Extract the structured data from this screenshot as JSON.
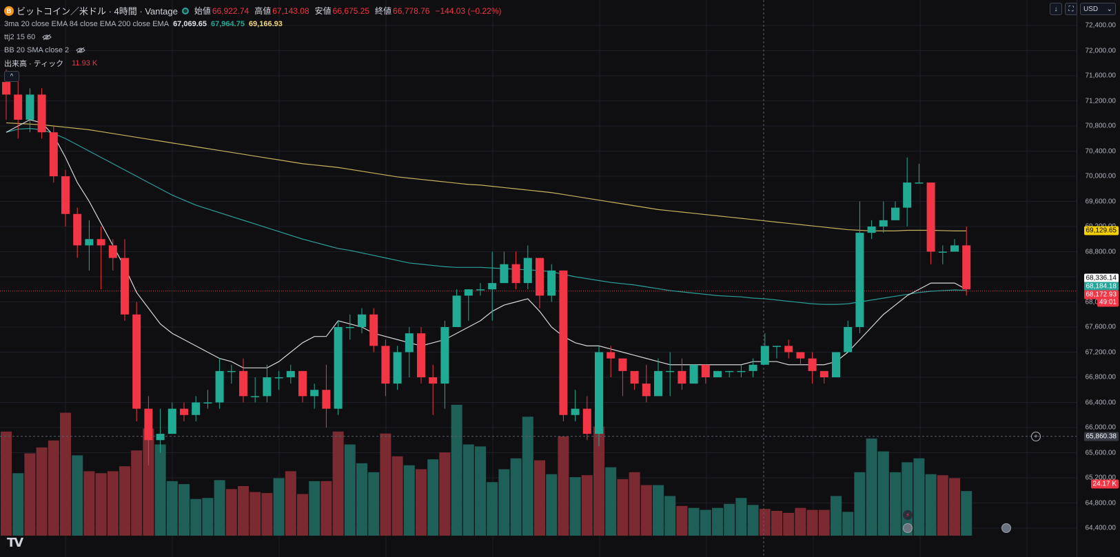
{
  "header": {
    "coin_icon_letter": "B",
    "symbol_title": "ビットコイン／米ドル · 4時間 · Vantage",
    "open_label": "始値",
    "open_value": "66,922.74",
    "high_label": "高値",
    "high_value": "67,143.08",
    "low_label": "安値",
    "low_value": "66,675.25",
    "close_label": "終値",
    "close_value": "66,778.76",
    "change_value": "−144.03 (−0.22%)"
  },
  "indicators": {
    "ma_name": "3ma 20 close EMA 84 close EMA 200 close EMA",
    "ma_value_1": "67,069.65",
    "ma_value_2": "67,964.75",
    "ma_value_3": "69,166.93",
    "ttj_name": "ttj2 15 60",
    "bb_name": "BB 20 SMA close 2",
    "volume_name": "出来高 · ティック",
    "volume_value": "11.93 K"
  },
  "controls": {
    "download_icon": "↓",
    "fullscreen_icon": "⛶",
    "currency": "USD",
    "collapse_icon": "^"
  },
  "price_axis": {
    "labels": [
      "72,400.00",
      "72,000.00",
      "71,600.00",
      "71,200.00",
      "70,800.00",
      "70,400.00",
      "70,000.00",
      "69,600.00",
      "69,200.00",
      "68,800.00",
      "68,400.00",
      "68,000.00",
      "67,600.00",
      "67,200.00",
      "66,800.00",
      "66,400.00",
      "66,000.00",
      "65,600.00",
      "65,200.00",
      "64,800.00",
      "64,400.00"
    ],
    "tags": {
      "ema200": "69,129.65",
      "last_white": "68,336.14",
      "ema84": "68,184.18",
      "last_price": "68,172.93",
      "countdown": "49:01",
      "crosshair_price": "65,860.38",
      "volume_tag": "24.17 K"
    }
  },
  "colors": {
    "up": "#22ab94",
    "down": "#f23645",
    "up_vol": "#1e5f58",
    "down_vol": "#7a2a30",
    "ema20": "#d8d8d8",
    "ema84": "#2aa198",
    "ema200": "#c9b45c",
    "bg": "#0f0f12",
    "grid": "#1c1f27"
  },
  "chart_data": {
    "type": "candlestick",
    "ylim": [
      64400,
      72600
    ],
    "candles": [
      [
        71500,
        71300,
        71700,
        70900
      ],
      [
        71300,
        70900,
        71600,
        70600
      ],
      [
        70900,
        71300,
        71400,
        70700
      ],
      [
        71300,
        70700,
        71400,
        70600
      ],
      [
        70700,
        70000,
        70800,
        69900
      ],
      [
        70000,
        69400,
        70100,
        69200
      ],
      [
        69400,
        68900,
        69500,
        68700
      ],
      [
        68900,
        69000,
        69300,
        68500
      ],
      [
        69000,
        68900,
        69200,
        68200
      ],
      [
        68900,
        68700,
        69000,
        68500
      ],
      [
        68700,
        67800,
        69000,
        67700
      ],
      [
        67800,
        66300,
        68000,
        66100
      ],
      [
        66300,
        65800,
        66500,
        65400
      ],
      [
        65800,
        65900,
        66300,
        65600
      ],
      [
        65900,
        66300,
        66400,
        65900
      ],
      [
        66300,
        66200,
        66400,
        66100
      ],
      [
        66200,
        66400,
        66500,
        66100
      ],
      [
        66400,
        66400,
        66600,
        66300
      ],
      [
        66400,
        66900,
        67100,
        66300
      ],
      [
        66900,
        66900,
        67000,
        66700
      ],
      [
        66900,
        66500,
        67100,
        66400
      ],
      [
        66500,
        66500,
        66800,
        66400
      ],
      [
        66500,
        66800,
        67000,
        66400
      ],
      [
        66800,
        66800,
        66900,
        66600
      ],
      [
        66800,
        66900,
        67000,
        66700
      ],
      [
        66900,
        66500,
        66900,
        66400
      ],
      [
        66500,
        66600,
        66700,
        66300
      ],
      [
        66600,
        66300,
        67000,
        66000
      ],
      [
        66300,
        67600,
        67700,
        66200
      ],
      [
        67600,
        67600,
        67800,
        67400
      ],
      [
        67600,
        67800,
        67900,
        67500
      ],
      [
        67800,
        67300,
        67900,
        67200
      ],
      [
        67300,
        66700,
        67400,
        66500
      ],
      [
        66700,
        67200,
        67300,
        66600
      ],
      [
        67200,
        67500,
        67600,
        66800
      ],
      [
        67500,
        66800,
        67600,
        66700
      ],
      [
        66800,
        66700,
        67000,
        66200
      ],
      [
        66700,
        67600,
        67700,
        66300
      ],
      [
        67600,
        68100,
        68200,
        67600
      ],
      [
        68100,
        68200,
        68200,
        67700
      ],
      [
        68200,
        68200,
        68300,
        68100
      ],
      [
        68200,
        68300,
        68800,
        67700
      ],
      [
        68300,
        68600,
        68800,
        68300
      ],
      [
        68600,
        68300,
        68800,
        68200
      ],
      [
        68300,
        68700,
        68900,
        68200
      ],
      [
        68700,
        68100,
        68700,
        67900
      ],
      [
        68100,
        68500,
        68600,
        68000
      ],
      [
        68500,
        66200,
        68500,
        66100
      ],
      [
        66200,
        66300,
        66600,
        66100
      ],
      [
        66300,
        65900,
        66500,
        65800
      ],
      [
        65900,
        67200,
        67300,
        65700
      ],
      [
        67200,
        67100,
        67300,
        66800
      ],
      [
        67100,
        66900,
        67100,
        66500
      ],
      [
        66900,
        66700,
        66800,
        66600
      ],
      [
        66700,
        66500,
        67000,
        66400
      ],
      [
        66500,
        66900,
        67100,
        66500
      ],
      [
        66900,
        66900,
        67200,
        66500
      ],
      [
        66900,
        66700,
        67100,
        66600
      ],
      [
        66700,
        67000,
        67000,
        66800
      ],
      [
        67000,
        66800,
        67000,
        66700
      ],
      [
        66800,
        66900,
        66900,
        66800
      ],
      [
        66900,
        66900,
        66900,
        66800
      ],
      [
        66900,
        66900,
        67000,
        66800
      ],
      [
        66900,
        67000,
        67100,
        66800
      ],
      [
        67000,
        67300,
        67500,
        67000
      ],
      [
        67300,
        67300,
        67300,
        67100
      ],
      [
        67300,
        67200,
        67400,
        67100
      ],
      [
        67200,
        67100,
        67200,
        67000
      ],
      [
        67100,
        66900,
        67200,
        66700
      ],
      [
        66900,
        66800,
        66900,
        66700
      ],
      [
        66800,
        67200,
        67200,
        66800
      ],
      [
        67200,
        67600,
        67700,
        67200
      ],
      [
        67600,
        69100,
        69600,
        67500
      ],
      [
        69100,
        69200,
        69300,
        69000
      ],
      [
        69200,
        69300,
        69600,
        69100
      ],
      [
        69300,
        69500,
        69600,
        69300
      ],
      [
        69500,
        69900,
        70300,
        69200
      ],
      [
        69900,
        69900,
        70200,
        69900
      ],
      [
        69900,
        68800,
        69900,
        68600
      ],
      [
        68800,
        68800,
        68900,
        68600
      ],
      [
        68800,
        68900,
        69000,
        68800
      ],
      [
        68900,
        68200,
        69200,
        68100
      ]
    ],
    "volumes": [
      [
        0,
        10.5
      ],
      [
        1,
        6.3
      ],
      [
        0,
        8.3
      ],
      [
        0,
        8.9
      ],
      [
        0,
        9.6
      ],
      [
        0,
        12.4
      ],
      [
        1,
        8.1
      ],
      [
        0,
        6.5
      ],
      [
        0,
        6.3
      ],
      [
        0,
        6.5
      ],
      [
        0,
        7.0
      ],
      [
        0,
        8.6
      ],
      [
        0,
        10.8
      ],
      [
        1,
        9.2
      ],
      [
        1,
        5.5
      ],
      [
        1,
        5.2
      ],
      [
        1,
        3.7
      ],
      [
        1,
        3.8
      ],
      [
        1,
        5.6
      ],
      [
        0,
        4.7
      ],
      [
        0,
        5.0
      ],
      [
        0,
        4.4
      ],
      [
        0,
        4.3
      ],
      [
        1,
        5.8
      ],
      [
        0,
        6.5
      ],
      [
        0,
        4.2
      ],
      [
        1,
        5.5
      ],
      [
        0,
        5.5
      ],
      [
        0,
        10.5
      ],
      [
        1,
        9.2
      ],
      [
        1,
        7.3
      ],
      [
        1,
        6.4
      ],
      [
        0,
        10.3
      ],
      [
        0,
        8.0
      ],
      [
        1,
        7.1
      ],
      [
        0,
        6.7
      ],
      [
        1,
        7.7
      ],
      [
        0,
        8.4
      ],
      [
        1,
        13.2
      ],
      [
        1,
        9.2
      ],
      [
        1,
        9.0
      ],
      [
        1,
        5.4
      ],
      [
        1,
        6.7
      ],
      [
        1,
        7.8
      ],
      [
        1,
        12.0
      ],
      [
        0,
        7.6
      ],
      [
        1,
        6.2
      ],
      [
        0,
        10.0
      ],
      [
        1,
        5.9
      ],
      [
        0,
        6.1
      ],
      [
        0,
        11.0
      ],
      [
        1,
        6.9
      ],
      [
        0,
        5.7
      ],
      [
        0,
        6.4
      ],
      [
        0,
        5.1
      ],
      [
        1,
        5.1
      ],
      [
        1,
        4.0
      ],
      [
        0,
        3.0
      ],
      [
        1,
        2.8
      ],
      [
        1,
        2.6
      ],
      [
        1,
        2.8
      ],
      [
        1,
        3.2
      ],
      [
        1,
        3.8
      ],
      [
        1,
        3.1
      ],
      [
        0,
        2.7
      ],
      [
        0,
        2.5
      ],
      [
        0,
        2.3
      ],
      [
        0,
        2.8
      ],
      [
        0,
        2.6
      ],
      [
        0,
        2.6
      ],
      [
        1,
        4.0
      ],
      [
        1,
        2.4
      ],
      [
        1,
        6.4
      ],
      [
        1,
        9.8
      ],
      [
        1,
        8.5
      ],
      [
        1,
        6.4
      ],
      [
        1,
        7.4
      ],
      [
        1,
        7.8
      ],
      [
        1,
        6.2
      ],
      [
        0,
        6.1
      ],
      [
        0,
        5.8
      ],
      [
        1,
        4.5
      ]
    ],
    "ema20": [
      70700,
      70800,
      70900,
      70850,
      70650,
      70300,
      69900,
      69600,
      69250,
      68900,
      68550,
      68150,
      67900,
      67650,
      67500,
      67400,
      67300,
      67200,
      67100,
      67050,
      66950,
      66950,
      66950,
      67050,
      67200,
      67350,
      67450,
      67450,
      67700,
      67650,
      67600,
      67500,
      67450,
      67400,
      67350,
      67300,
      67350,
      67400,
      67500,
      67600,
      67700,
      67850,
      67950,
      68000,
      68050,
      67850,
      67600,
      67450,
      67350,
      67300,
      67300,
      67250,
      67200,
      67150,
      67100,
      67050,
      67000,
      67000,
      67000,
      67000,
      67000,
      67000,
      67000,
      67050,
      67050,
      67050,
      67000,
      67000,
      67000,
      67000,
      67050,
      67200,
      67400,
      67600,
      67800,
      67950,
      68100,
      68200,
      68300,
      68300,
      68300,
      68200
    ],
    "ema84": [
      70700,
      70750,
      70760,
      70740,
      70680,
      70600,
      70500,
      70400,
      70300,
      70200,
      70100,
      70000,
      69900,
      69800,
      69700,
      69620,
      69540,
      69480,
      69420,
      69360,
      69300,
      69240,
      69180,
      69120,
      69060,
      69000,
      68950,
      68900,
      68850,
      68820,
      68780,
      68740,
      68700,
      68660,
      68620,
      68600,
      68580,
      68560,
      68550,
      68550,
      68550,
      68540,
      68530,
      68520,
      68510,
      68500,
      68480,
      68440,
      68400,
      68370,
      68340,
      68310,
      68290,
      68270,
      68240,
      68210,
      68180,
      68160,
      68140,
      68120,
      68100,
      68090,
      68080,
      68060,
      68050,
      68030,
      68010,
      67990,
      67970,
      67960,
      67960,
      67970,
      68000,
      68030,
      68060,
      68090,
      68120,
      68150,
      68170,
      68180,
      68190,
      68184
    ],
    "ema200": [
      70850,
      70840,
      70830,
      70820,
      70800,
      70780,
      70760,
      70740,
      70710,
      70680,
      70650,
      70620,
      70590,
      70560,
      70530,
      70500,
      70470,
      70440,
      70410,
      70380,
      70350,
      70320,
      70290,
      70260,
      70230,
      70200,
      70180,
      70160,
      70140,
      70110,
      70080,
      70050,
      70020,
      69990,
      69970,
      69950,
      69930,
      69910,
      69890,
      69870,
      69860,
      69840,
      69820,
      69800,
      69780,
      69760,
      69740,
      69710,
      69680,
      69650,
      69620,
      69590,
      69560,
      69530,
      69500,
      69470,
      69450,
      69430,
      69410,
      69390,
      69370,
      69350,
      69330,
      69310,
      69290,
      69270,
      69250,
      69230,
      69210,
      69190,
      69170,
      69150,
      69140,
      69130,
      69130,
      69130,
      69140,
      69140,
      69140,
      69135,
      69130,
      69130
    ]
  }
}
